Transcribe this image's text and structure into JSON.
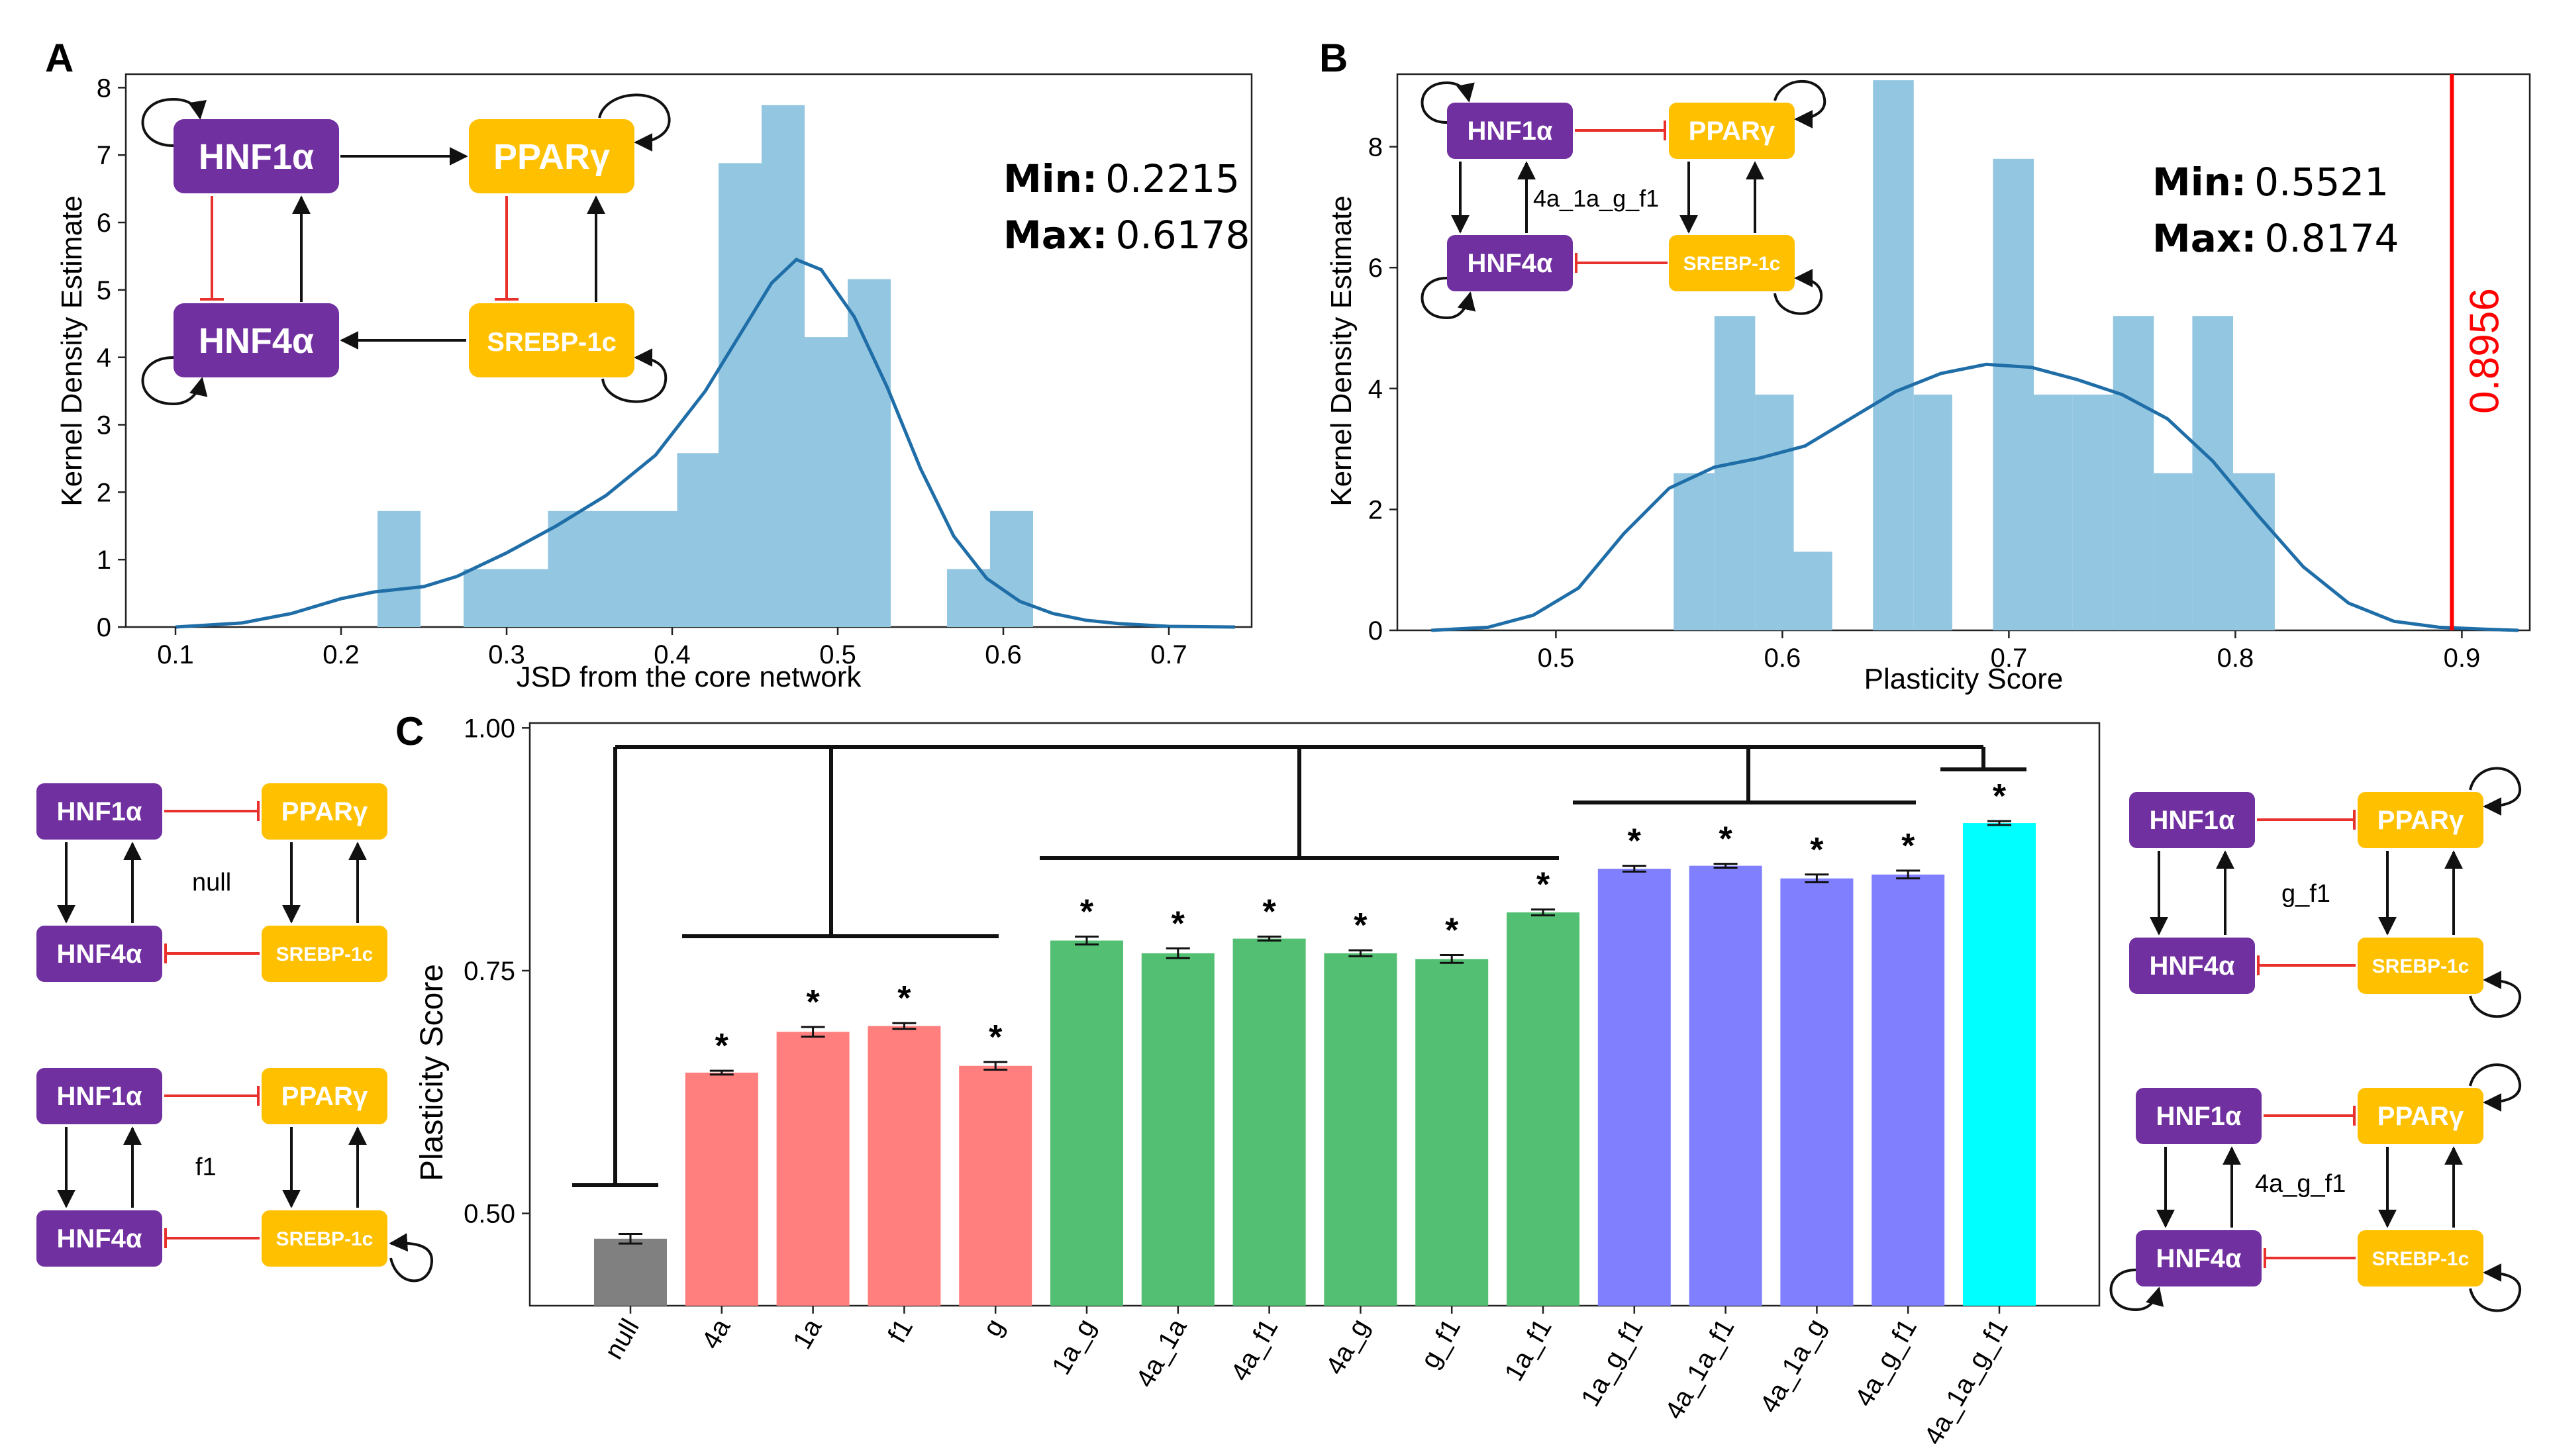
{
  "colors": {
    "hist": "#93c6e0",
    "kde": "#1f6ea8",
    "purple": "#7030a0",
    "yellow": "#ffc000",
    "inhibit": "#e8302d",
    "arrow": "#111111",
    "threshold": "#ff0000",
    "bar_null": "#808080",
    "bar_single": "#ff7f7f",
    "bar_double": "#52bf72",
    "bar_triple": "#8080ff",
    "bar_quad": "#00ffff"
  },
  "panel_labels": {
    "a": "A",
    "b": "B",
    "c": "C"
  },
  "genes": {
    "hnf1a": "HNF1α",
    "ppar": "PPARγ",
    "hnf4a": "HNF4α",
    "srebp": "SREBP-1c"
  },
  "network_labels": {
    "b": "4a_1a_g_f1",
    "null": "null",
    "f1": "f1",
    "g_f1": "g_f1",
    "4a_g_f1": "4a_g_f1"
  },
  "significance_marker": "*",
  "chart_data": [
    {
      "id": "A",
      "type": "histogram",
      "xlabel": "JSD from the core network",
      "ylabel": "Kernel Density Estimate",
      "xlim": [
        0.07,
        0.75
      ],
      "ylim": [
        0,
        8.2
      ],
      "xticks": [
        "0.1",
        "0.2",
        "0.3",
        "0.4",
        "0.5",
        "0.6",
        "0.7"
      ],
      "yticks": [
        "0",
        "1",
        "2",
        "3",
        "4",
        "5",
        "6",
        "7",
        "8"
      ],
      "bins": [
        {
          "x0": 0.222,
          "x1": 0.248,
          "y": 1.72
        },
        {
          "x0": 0.274,
          "x1": 0.299,
          "y": 0.86
        },
        {
          "x0": 0.299,
          "x1": 0.325,
          "y": 0.86
        },
        {
          "x0": 0.325,
          "x1": 0.351,
          "y": 1.72
        },
        {
          "x0": 0.351,
          "x1": 0.377,
          "y": 1.72
        },
        {
          "x0": 0.377,
          "x1": 0.403,
          "y": 1.72
        },
        {
          "x0": 0.403,
          "x1": 0.428,
          "y": 2.58
        },
        {
          "x0": 0.428,
          "x1": 0.454,
          "y": 6.88
        },
        {
          "x0": 0.454,
          "x1": 0.48,
          "y": 7.74
        },
        {
          "x0": 0.48,
          "x1": 0.506,
          "y": 4.3
        },
        {
          "x0": 0.506,
          "x1": 0.532,
          "y": 5.16
        },
        {
          "x0": 0.566,
          "x1": 0.592,
          "y": 0.86
        },
        {
          "x0": 0.592,
          "x1": 0.618,
          "y": 1.72
        }
      ],
      "kde": {
        "x": [
          0.1,
          0.14,
          0.17,
          0.2,
          0.22,
          0.25,
          0.27,
          0.3,
          0.33,
          0.36,
          0.39,
          0.42,
          0.44,
          0.46,
          0.475,
          0.49,
          0.51,
          0.53,
          0.55,
          0.57,
          0.59,
          0.61,
          0.63,
          0.65,
          0.67,
          0.7,
          0.74
        ],
        "y": [
          0.0,
          0.06,
          0.2,
          0.42,
          0.52,
          0.6,
          0.75,
          1.1,
          1.5,
          1.95,
          2.55,
          3.5,
          4.3,
          5.1,
          5.45,
          5.3,
          4.6,
          3.55,
          2.35,
          1.35,
          0.72,
          0.38,
          0.2,
          0.1,
          0.05,
          0.01,
          0.0
        ]
      },
      "stats": {
        "min_label": "Min:",
        "min_value": "0.2215",
        "max_label": "Max:",
        "max_value": "0.6178"
      }
    },
    {
      "id": "B",
      "type": "histogram",
      "xlabel": "Plasticity Score",
      "ylabel": "Kernel Density Estimate",
      "xlim": [
        0.43,
        0.93
      ],
      "ylim": [
        0,
        9.2
      ],
      "xticks": [
        "0.5",
        "0.6",
        "0.7",
        "0.8",
        "0.9"
      ],
      "yticks": [
        "0",
        "2",
        "4",
        "6",
        "8"
      ],
      "bins": [
        {
          "x0": 0.552,
          "x1": 0.57,
          "y": 2.6
        },
        {
          "x0": 0.57,
          "x1": 0.588,
          "y": 5.2
        },
        {
          "x0": 0.588,
          "x1": 0.605,
          "y": 3.9
        },
        {
          "x0": 0.605,
          "x1": 0.622,
          "y": 1.3
        },
        {
          "x0": 0.64,
          "x1": 0.658,
          "y": 9.1
        },
        {
          "x0": 0.658,
          "x1": 0.675,
          "y": 3.9
        },
        {
          "x0": 0.693,
          "x1": 0.711,
          "y": 7.8
        },
        {
          "x0": 0.711,
          "x1": 0.728,
          "y": 3.9
        },
        {
          "x0": 0.728,
          "x1": 0.746,
          "y": 3.9
        },
        {
          "x0": 0.746,
          "x1": 0.764,
          "y": 5.2
        },
        {
          "x0": 0.764,
          "x1": 0.781,
          "y": 2.6
        },
        {
          "x0": 0.781,
          "x1": 0.799,
          "y": 5.2
        },
        {
          "x0": 0.799,
          "x1": 0.8174,
          "y": 2.6
        }
      ],
      "kde": {
        "x": [
          0.445,
          0.47,
          0.49,
          0.51,
          0.53,
          0.55,
          0.57,
          0.59,
          0.61,
          0.63,
          0.65,
          0.67,
          0.69,
          0.71,
          0.73,
          0.75,
          0.77,
          0.79,
          0.81,
          0.83,
          0.85,
          0.87,
          0.89,
          0.91,
          0.925
        ],
        "y": [
          0.0,
          0.05,
          0.25,
          0.7,
          1.6,
          2.35,
          2.7,
          2.85,
          3.05,
          3.5,
          3.95,
          4.25,
          4.4,
          4.35,
          4.15,
          3.9,
          3.5,
          2.8,
          1.9,
          1.05,
          0.45,
          0.15,
          0.05,
          0.02,
          0.0
        ]
      },
      "threshold": {
        "x": 0.8956,
        "label": "0.8956"
      },
      "stats": {
        "min_label": "Min:",
        "min_value": "0.5521",
        "max_label": "Max:",
        "max_value": "0.8174"
      }
    },
    {
      "id": "C",
      "type": "bar",
      "ylabel": "Plasticity Score",
      "ylim": [
        0.405,
        1.005
      ],
      "yticks": [
        "0.50",
        "0.75",
        "1.00"
      ],
      "categories": [
        "null",
        "4a",
        "1a",
        "f1",
        "g",
        "1a_g",
        "4a_1a",
        "4a_f1",
        "4a_g",
        "g_f1",
        "1a_f1",
        "1a_g_f1",
        "4a_1a_f1",
        "4a_1a_g",
        "4a_g_f1",
        "4a_1a_g_f1"
      ],
      "values": [
        0.474,
        0.645,
        0.687,
        0.693,
        0.652,
        0.781,
        0.768,
        0.783,
        0.768,
        0.762,
        0.81,
        0.855,
        0.858,
        0.845,
        0.849,
        0.902
      ],
      "errors": [
        0.005,
        0.002,
        0.005,
        0.003,
        0.004,
        0.004,
        0.005,
        0.002,
        0.003,
        0.004,
        0.003,
        0.003,
        0.002,
        0.004,
        0.004,
        0.002
      ],
      "groups": [
        "null",
        "single",
        "single",
        "single",
        "single",
        "double",
        "double",
        "double",
        "double",
        "double",
        "double",
        "triple",
        "triple",
        "triple",
        "triple",
        "quad"
      ],
      "significant": [
        false,
        true,
        true,
        true,
        true,
        true,
        true,
        true,
        true,
        true,
        true,
        true,
        true,
        true,
        true,
        true
      ]
    }
  ]
}
